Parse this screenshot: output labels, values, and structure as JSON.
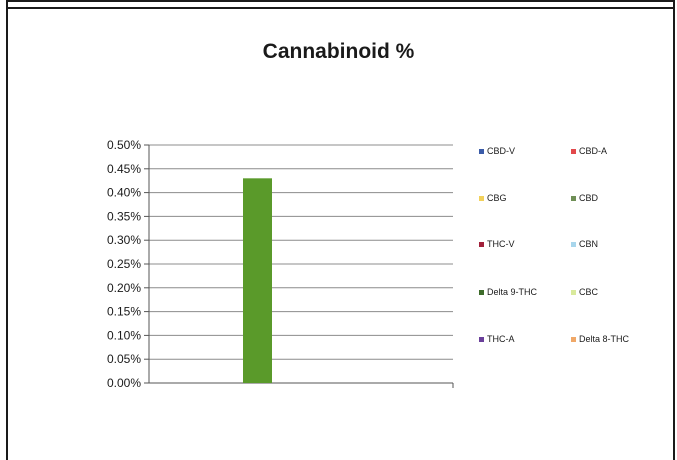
{
  "chart_data": {
    "type": "bar",
    "title": "Cannabinoid %",
    "xlabel": "",
    "ylabel": "",
    "ylim": [
      0,
      0.5
    ],
    "y_tick_format": "percent",
    "y_ticks": [
      "0.00%",
      "0.05%",
      "0.10%",
      "0.15%",
      "0.20%",
      "0.25%",
      "0.30%",
      "0.35%",
      "0.40%",
      "0.45%",
      "0.50%"
    ],
    "grid": true,
    "legend_position": "right",
    "categories": [
      ""
    ],
    "series": [
      {
        "name": "CBD-V",
        "color": "#3a5ba8",
        "values": [
          0
        ]
      },
      {
        "name": "CBD-A",
        "color": "#e2484b",
        "values": [
          0
        ]
      },
      {
        "name": "CBG",
        "color": "#f2d15b",
        "values": [
          0
        ]
      },
      {
        "name": "CBD",
        "color": "#6f8f56",
        "values": [
          0
        ]
      },
      {
        "name": "THC-V",
        "color": "#a1203a",
        "values": [
          0
        ]
      },
      {
        "name": "CBN",
        "color": "#a8d6ec",
        "values": [
          0
        ]
      },
      {
        "name": "Delta 9-THC",
        "color": "#3d6b2a",
        "values": [
          0.43
        ]
      },
      {
        "name": "CBC",
        "color": "#d9ea9c",
        "values": [
          0
        ]
      },
      {
        "name": "THC-A",
        "color": "#6a3f9a",
        "values": [
          0
        ]
      },
      {
        "name": "Delta 8-THC",
        "color": "#f0a868",
        "values": [
          0
        ]
      }
    ],
    "bar_color": "#5a9a2a"
  }
}
